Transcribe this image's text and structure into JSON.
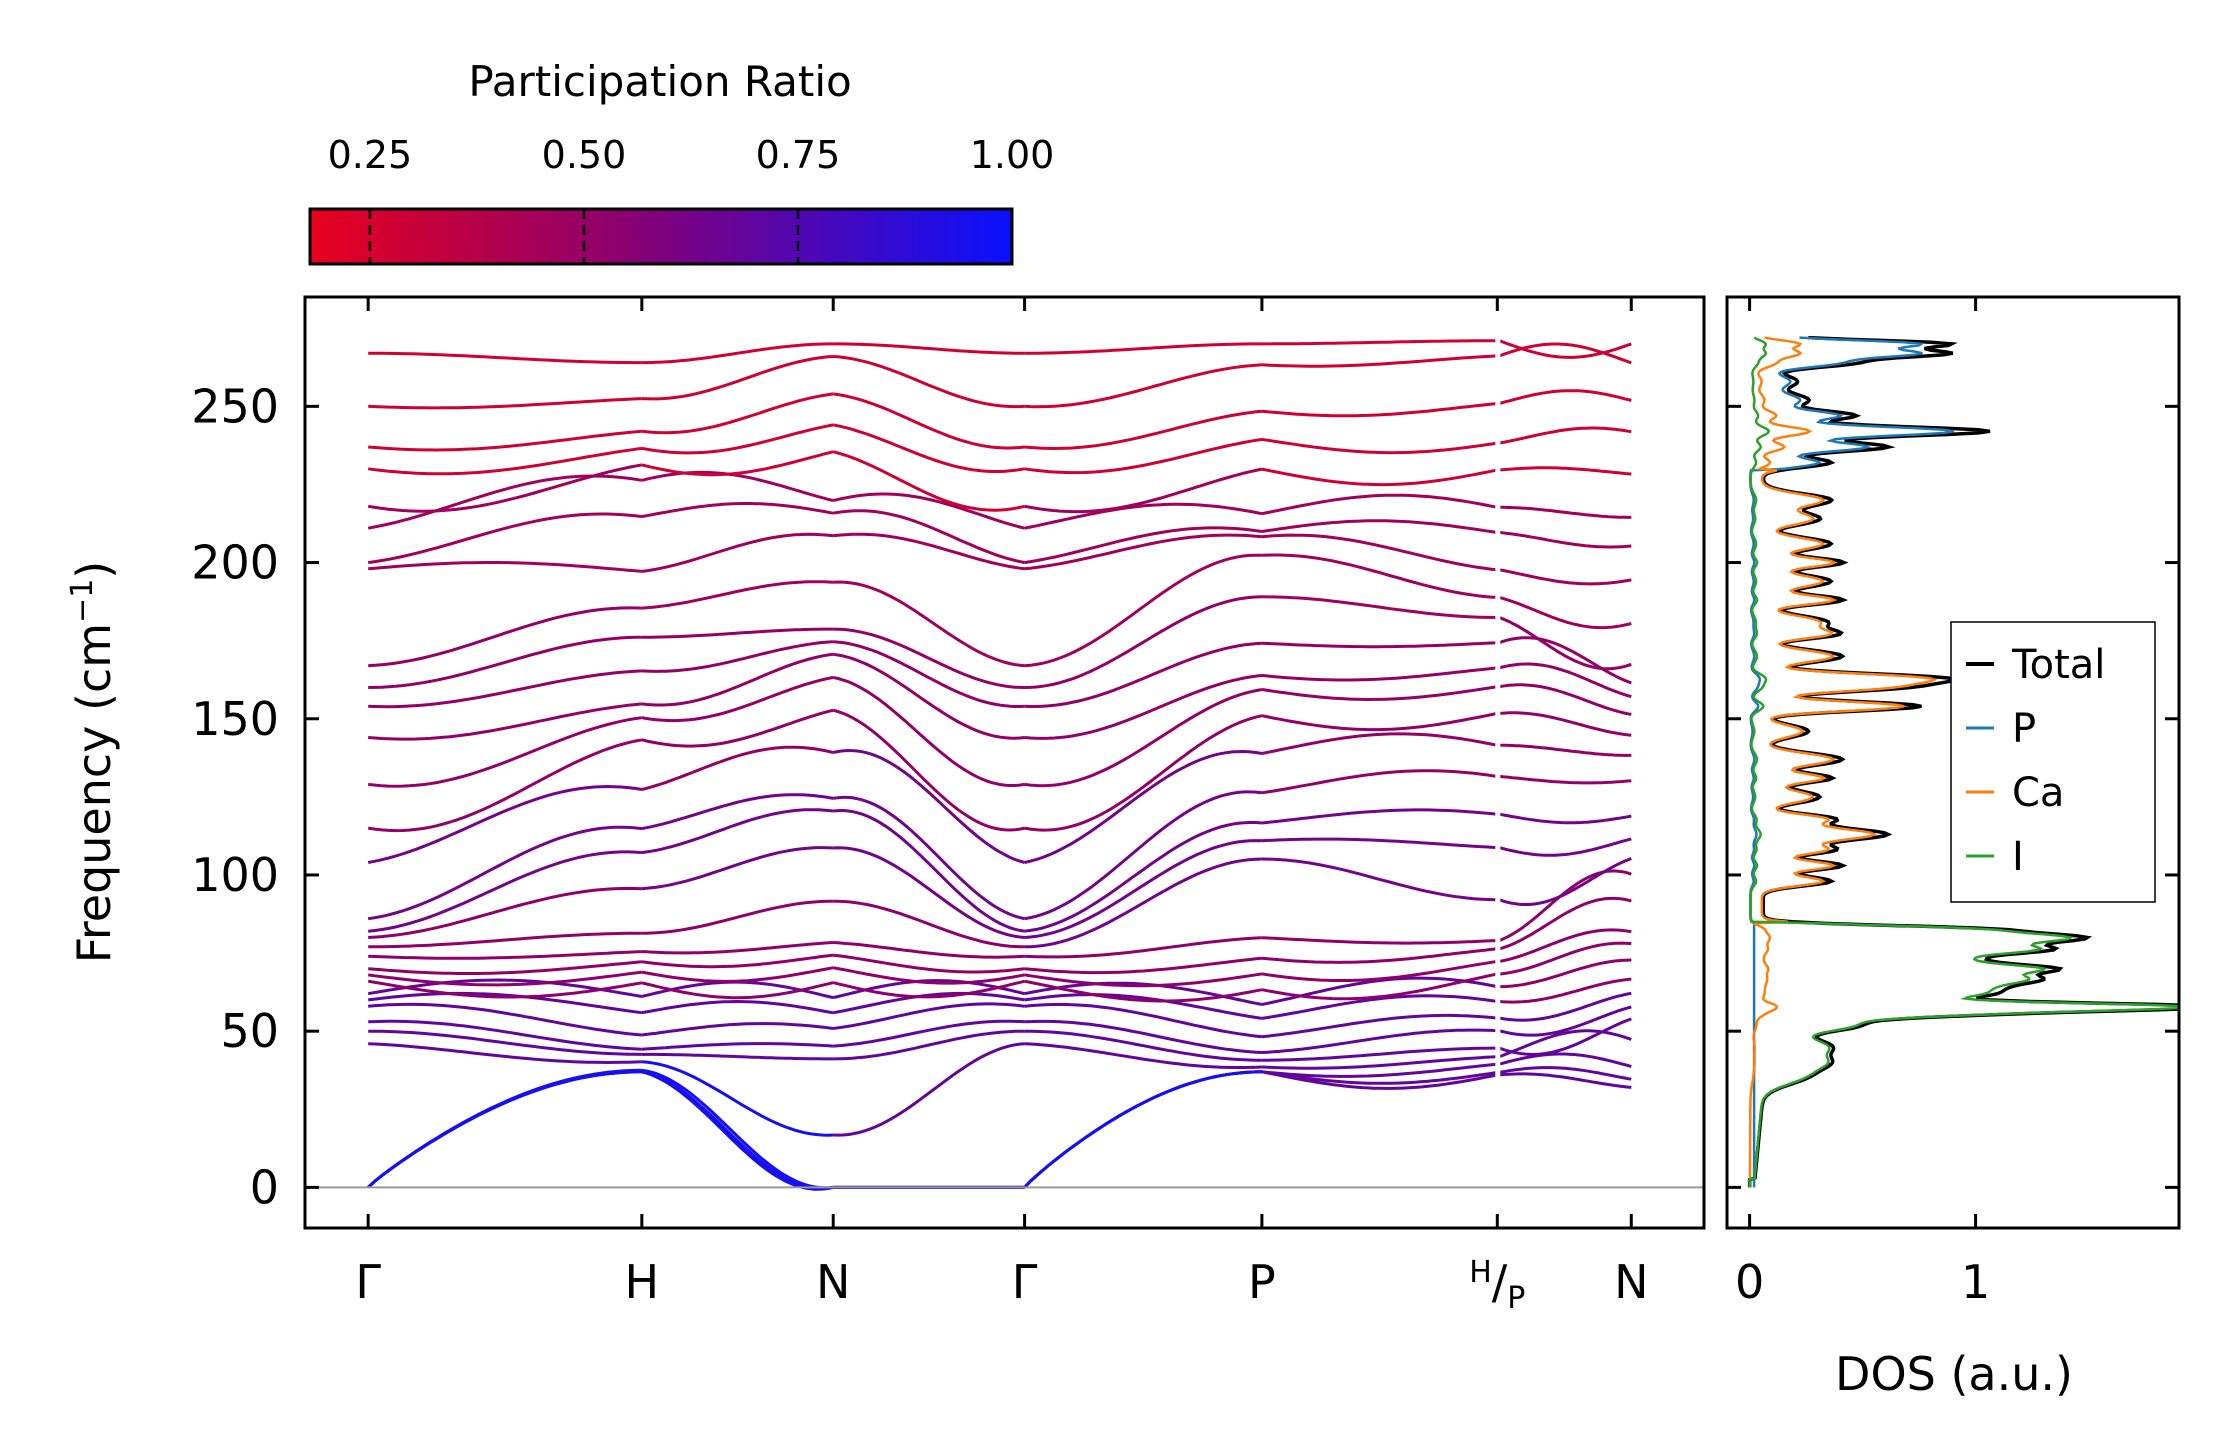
{
  "chart_data": [
    {
      "type": "line",
      "subtype": "phonon-band-structure",
      "ylabel": "Frequency (cm⁻¹)",
      "ylabel_parts": {
        "text": "Frequency (cm",
        "sup": "−1",
        "close": ")"
      },
      "ylim": [
        -13,
        285
      ],
      "yticks": [
        0,
        50,
        100,
        150,
        200,
        250
      ],
      "path_labels": [
        {
          "label": "Γ"
        },
        {
          "label": "H"
        },
        {
          "label": "N"
        },
        {
          "label": "Γ"
        },
        {
          "label": "P"
        },
        {
          "label_pre": "H",
          "label_slash": "/",
          "label_post": "P"
        },
        {
          "label": "N"
        }
      ],
      "path_positions": [
        0,
        1.43,
        2.43,
        3.43,
        4.67,
        5.9,
        6.6
      ],
      "segment_break_after": 5,
      "x_range": [
        -0.33,
        6.98
      ],
      "band_frequencies_approx_cm-1": {
        "gamma": [
          0,
          0,
          0,
          46,
          50,
          53,
          58,
          60,
          62,
          66,
          68,
          70,
          74,
          77,
          80,
          82,
          86,
          104,
          115,
          129,
          144,
          154,
          160,
          167,
          198,
          200,
          211,
          218,
          230,
          237,
          250,
          267
        ],
        "H": [
          37,
          37,
          42,
          45,
          58,
          66,
          72,
          78,
          104,
          118,
          147,
          155,
          175,
          192,
          224,
          233,
          243,
          264
        ]
      },
      "colorbar": {
        "label": "Participation Ratio",
        "ticks": [
          "0.25",
          "0.50",
          "0.75",
          "1.00"
        ],
        "tick_values": [
          0.25,
          0.5,
          0.75,
          1.0
        ],
        "range": [
          0.18,
          1.0
        ],
        "color_low": "#e8001e",
        "color_mid": "#8a0070",
        "color_high": "#0a10ff"
      },
      "zero_line_color": "#999999"
    },
    {
      "type": "line",
      "subtype": "density-of-states",
      "xlabel": "DOS (a.u.)",
      "xticks": [
        "0",
        "1"
      ],
      "xtick_values": [
        0,
        1
      ],
      "xlim": [
        -0.1,
        1.9
      ],
      "series": [
        {
          "name": "Total",
          "color": "#000000"
        },
        {
          "name": "P",
          "color": "#1f77b4"
        },
        {
          "name": "Ca",
          "color": "#ff7f0e"
        },
        {
          "name": "I",
          "color": "#2ca02c"
        }
      ],
      "legend_position": "center-right"
    }
  ]
}
